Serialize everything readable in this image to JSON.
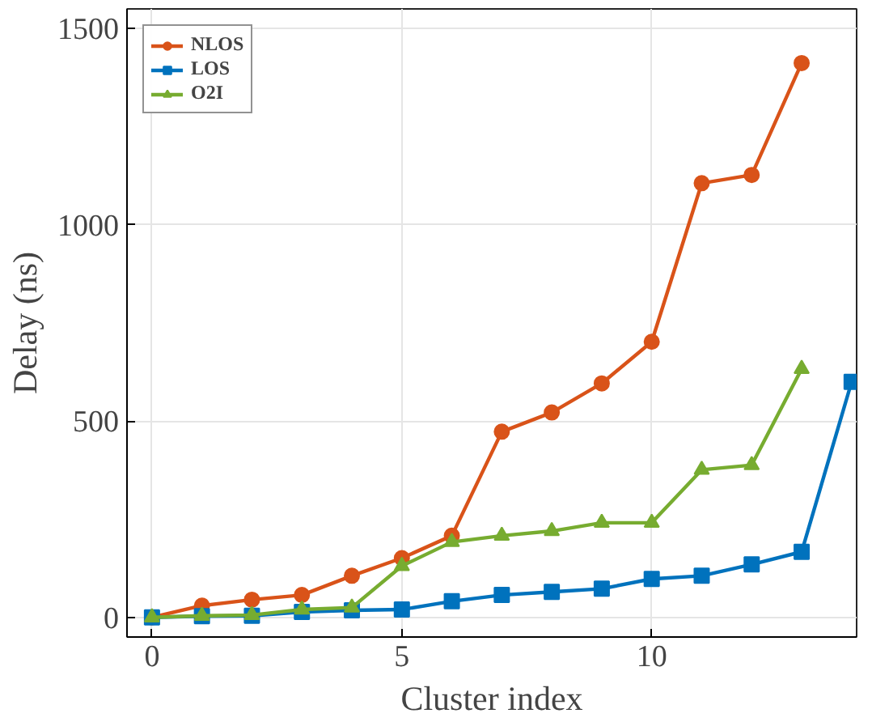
{
  "chart_data": {
    "type": "line",
    "xlabel": "Cluster index",
    "ylabel": "Delay (ns)",
    "xlim": [
      -0.5,
      14.1
    ],
    "ylim": [
      -50,
      1550
    ],
    "xticks": [
      0,
      5,
      10
    ],
    "yticks": [
      0,
      500,
      1000,
      1500
    ],
    "grid": true,
    "legend": "top left",
    "line_style": "solid",
    "series": [
      {
        "name": "NLOS",
        "color": "#d95319",
        "marker": "circle",
        "x": [
          0,
          1,
          2,
          3,
          4,
          5,
          6,
          7,
          8,
          9,
          10,
          11,
          12,
          13
        ],
        "values": [
          0,
          30,
          45,
          57,
          106,
          151,
          208,
          473,
          522,
          596,
          702,
          1106,
          1127,
          1412
        ]
      },
      {
        "name": "LOS",
        "color": "#0072bd",
        "marker": "square",
        "x": [
          0,
          1,
          2,
          3,
          4,
          5,
          6,
          7,
          8,
          9,
          10,
          11,
          12,
          13,
          14
        ],
        "values": [
          0,
          3,
          4,
          14,
          18,
          20,
          41,
          57,
          65,
          73,
          98,
          106,
          135,
          167,
          600
        ]
      },
      {
        "name": "O2I",
        "color": "#77ac30",
        "marker": "triangle",
        "x": [
          0,
          1,
          2,
          3,
          4,
          5,
          6,
          7,
          8,
          9,
          10,
          11,
          12,
          13
        ],
        "values": [
          0,
          4,
          6,
          20,
          25,
          131,
          192,
          208,
          220,
          241,
          241,
          376,
          388,
          633
        ]
      }
    ]
  }
}
